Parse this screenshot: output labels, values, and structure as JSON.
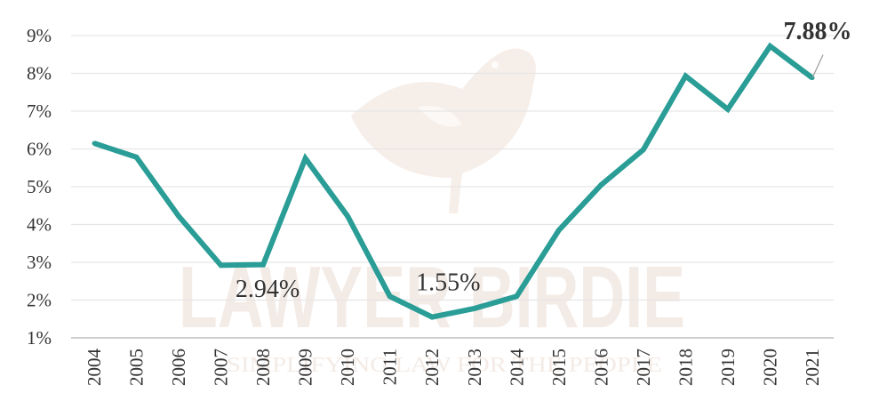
{
  "watermark": {
    "brand": "LAWYER BIRDIE",
    "tagline": "SIMPLIFYING LAW FOR THE PEOPLE",
    "logo_icon": "bird-icon"
  },
  "colors": {
    "line": "#2a9d96",
    "grid": "#e6e6e6",
    "axis": "#bfbfbf",
    "text": "#333333",
    "watermark": "#f3ebe6"
  },
  "chart_data": {
    "type": "line",
    "title": "",
    "xlabel": "",
    "ylabel": "",
    "categories": [
      "2004",
      "2005",
      "2006",
      "2007",
      "2008",
      "2009",
      "2010",
      "2011",
      "2012",
      "2013",
      "2014",
      "2015",
      "2016",
      "2017",
      "2018",
      "2019",
      "2020",
      "2021"
    ],
    "series": [
      {
        "values": [
          6.15,
          5.78,
          4.22,
          2.92,
          2.94,
          5.75,
          4.22,
          2.1,
          1.55,
          1.78,
          2.1,
          3.85,
          5.05,
          5.98,
          7.93,
          7.05,
          8.72,
          7.88
        ]
      }
    ],
    "ylim": [
      1,
      9
    ],
    "yticks": [
      1,
      2,
      3,
      4,
      5,
      6,
      7,
      8,
      9
    ],
    "ytick_labels": [
      "1%",
      "2%",
      "3%",
      "4%",
      "5%",
      "6%",
      "7%",
      "8%",
      "9%"
    ],
    "grid": true,
    "legend": "none",
    "annotations": [
      {
        "category": "2008",
        "text": "2.94%",
        "bold": false
      },
      {
        "category": "2012",
        "text": "1.55%",
        "bold": false
      },
      {
        "category": "2021",
        "text": "7.88%",
        "bold": true
      }
    ]
  }
}
